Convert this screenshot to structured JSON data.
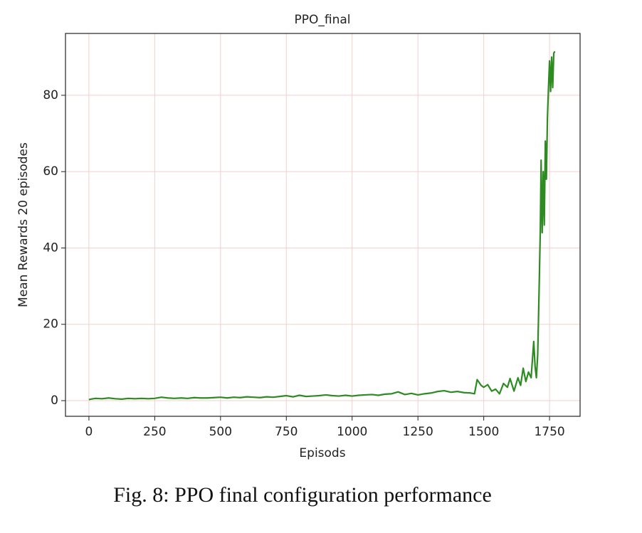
{
  "chart_data": {
    "type": "line",
    "title": "PPO_final",
    "xlabel": "Episods",
    "ylabel": "Mean Rewards 20 episodes",
    "caption": "Fig. 8: PPO final configuration performance",
    "xlim": [
      -89,
      1866
    ],
    "ylim": [
      -4.1,
      96.2
    ],
    "xticks": [
      0,
      250,
      500,
      750,
      1000,
      1250,
      1500,
      1750
    ],
    "yticks": [
      0,
      20,
      40,
      60,
      80
    ],
    "grid": true,
    "grid_color": "#f3cfcf",
    "x": [
      0,
      25,
      50,
      75,
      100,
      125,
      150,
      175,
      200,
      225,
      250,
      275,
      300,
      325,
      350,
      375,
      400,
      425,
      450,
      475,
      500,
      525,
      550,
      575,
      600,
      625,
      650,
      675,
      700,
      725,
      750,
      775,
      800,
      825,
      850,
      875,
      900,
      925,
      950,
      975,
      1000,
      1025,
      1050,
      1075,
      1100,
      1125,
      1150,
      1175,
      1200,
      1225,
      1250,
      1275,
      1300,
      1325,
      1350,
      1375,
      1400,
      1425,
      1450,
      1465,
      1475,
      1490,
      1500,
      1515,
      1530,
      1545,
      1560,
      1575,
      1590,
      1600,
      1615,
      1630,
      1640,
      1650,
      1660,
      1670,
      1680,
      1690,
      1695,
      1700,
      1705,
      1710,
      1715,
      1718,
      1722,
      1726,
      1730,
      1734,
      1738,
      1742,
      1746,
      1750,
      1754,
      1758,
      1762,
      1766,
      1770
    ],
    "series": [
      {
        "name": "PPO_final",
        "color": "#2e8b22",
        "values": [
          0.3,
          0.6,
          0.5,
          0.7,
          0.5,
          0.4,
          0.6,
          0.5,
          0.6,
          0.5,
          0.6,
          0.9,
          0.7,
          0.6,
          0.7,
          0.6,
          0.8,
          0.7,
          0.7,
          0.8,
          0.9,
          0.7,
          0.9,
          0.8,
          1.0,
          0.9,
          0.8,
          1.0,
          0.9,
          1.1,
          1.3,
          1.0,
          1.4,
          1.1,
          1.2,
          1.3,
          1.5,
          1.3,
          1.2,
          1.4,
          1.2,
          1.4,
          1.5,
          1.6,
          1.4,
          1.7,
          1.8,
          2.3,
          1.6,
          1.9,
          1.5,
          1.8,
          2.0,
          2.4,
          2.6,
          2.2,
          2.4,
          2.1,
          2.0,
          1.8,
          5.5,
          4.0,
          3.5,
          4.2,
          2.5,
          3.0,
          1.8,
          4.5,
          3.5,
          5.8,
          2.5,
          6.0,
          4.0,
          8.5,
          5.0,
          7.5,
          6.0,
          15.5,
          9.0,
          6.0,
          12.0,
          28.0,
          45.0,
          63.0,
          44.0,
          60.0,
          46.0,
          68.0,
          58.0,
          74.0,
          82.0,
          89.0,
          81.0,
          90.0,
          82.0,
          91.0,
          91.5
        ]
      }
    ]
  }
}
